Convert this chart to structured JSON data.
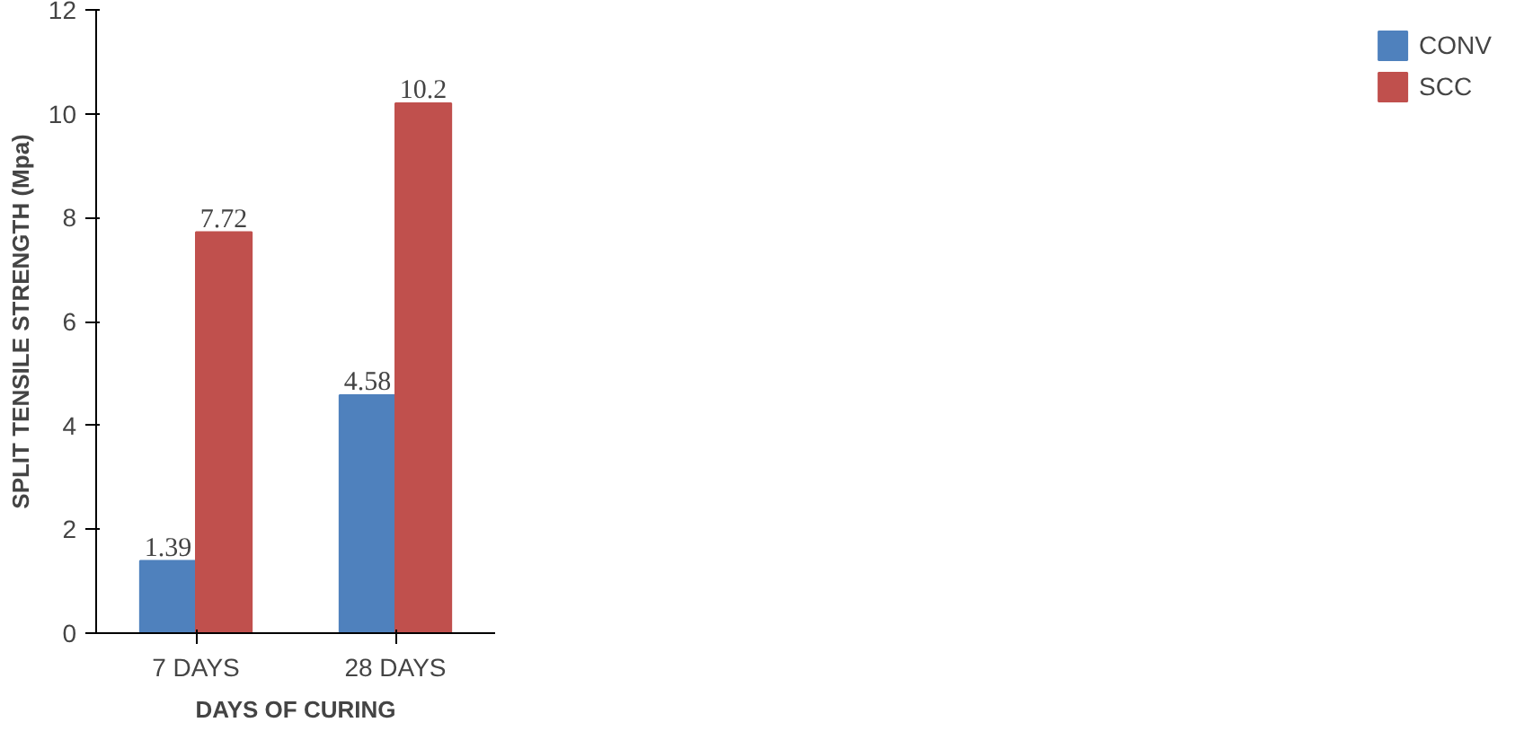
{
  "chart_data": {
    "type": "bar",
    "xlabel": "DAYS OF CURING",
    "ylabel": "SPLIT TENSILE STRENGTH (Mpa)",
    "categories": [
      "7 DAYS",
      "28 DAYS"
    ],
    "series": [
      {
        "name": "CONV",
        "color": "#4f81bd",
        "values": [
          1.39,
          4.58
        ]
      },
      {
        "name": "SCC",
        "color": "#c0504d",
        "values": [
          7.72,
          10.2
        ]
      }
    ],
    "ylim": [
      0,
      12
    ],
    "yticks": [
      0,
      2,
      4,
      6,
      8,
      10,
      12
    ],
    "grid": false,
    "legend": "right",
    "data_labels": true
  }
}
